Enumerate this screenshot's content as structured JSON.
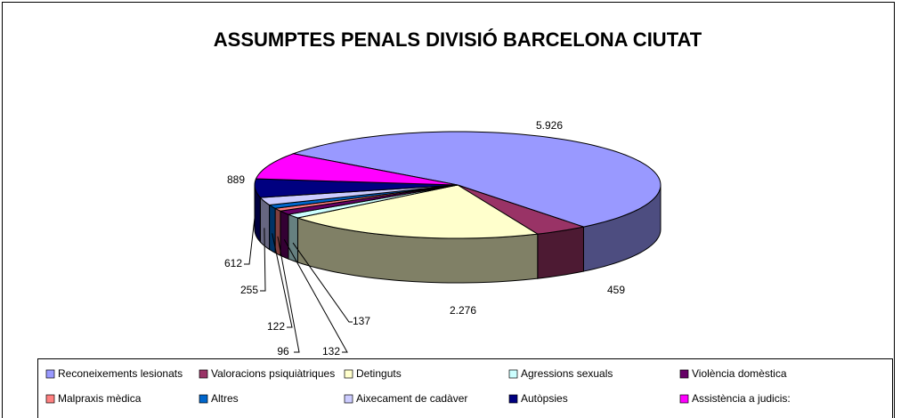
{
  "chart_data": {
    "type": "pie3d",
    "title": "ASSUMPTES PENALS DIVISIÓ BARCELONA CIUTAT",
    "categories": [
      "Reconeixements lesionats",
      "Valoracions psiquiàtriques",
      "Detinguts",
      "Agressions sexuals",
      "Violència domèstica",
      "Malpraxis mèdica",
      "Altres",
      "Aixecament de cadàver",
      "Autòpsies",
      "Assistència a judicis:"
    ],
    "values": [
      5926,
      459,
      2276,
      137,
      132,
      96,
      122,
      255,
      612,
      889
    ],
    "value_labels": [
      "5.926",
      "459",
      "2.276",
      "137",
      "132",
      "96",
      "122",
      "255",
      "612",
      "889"
    ],
    "colors": [
      "#9999ff",
      "#993366",
      "#ffffcc",
      "#ccffff",
      "#660066",
      "#ff8080",
      "#0066cc",
      "#ccccff",
      "#000080",
      "#ff00ff"
    ],
    "legend": "bottom"
  }
}
